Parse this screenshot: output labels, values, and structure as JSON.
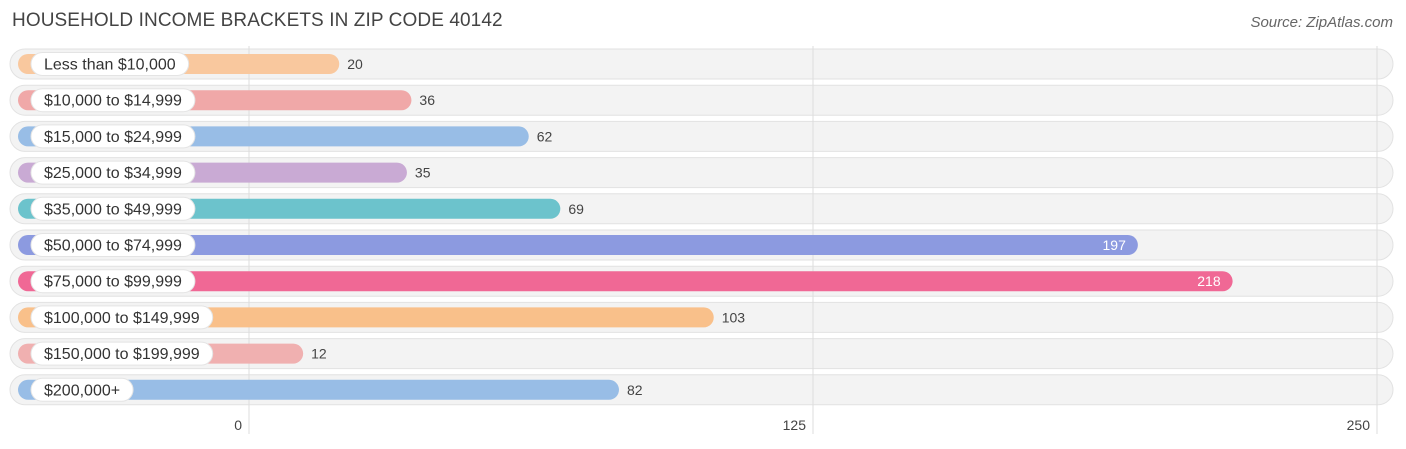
{
  "header": {
    "title": "HOUSEHOLD INCOME BRACKETS IN ZIP CODE 40142",
    "source": "Source: ZipAtlas.com"
  },
  "chart_data": {
    "type": "bar",
    "orientation": "horizontal",
    "title": "HOUSEHOLD INCOME BRACKETS IN ZIP CODE 40142",
    "xlabel": "",
    "ylabel": "",
    "xlim": [
      0,
      250
    ],
    "ticks": [
      0,
      125,
      250
    ],
    "tick_labels": [
      "0",
      "125",
      "250"
    ],
    "grid": true,
    "categories": [
      "Less than $10,000",
      "$10,000 to $14,999",
      "$15,000 to $24,999",
      "$25,000 to $34,999",
      "$35,000 to $49,999",
      "$50,000 to $74,999",
      "$75,000 to $99,999",
      "$100,000 to $149,999",
      "$150,000 to $199,999",
      "$200,000+"
    ],
    "values": [
      20,
      36,
      62,
      35,
      69,
      197,
      218,
      103,
      12,
      82
    ],
    "colors": [
      "#f9c89e",
      "#f0a8a8",
      "#98bde6",
      "#c9aad4",
      "#6cc3cc",
      "#8c9ae0",
      "#f06895",
      "#f9c08a",
      "#f0b0b0",
      "#98bde6"
    ]
  }
}
